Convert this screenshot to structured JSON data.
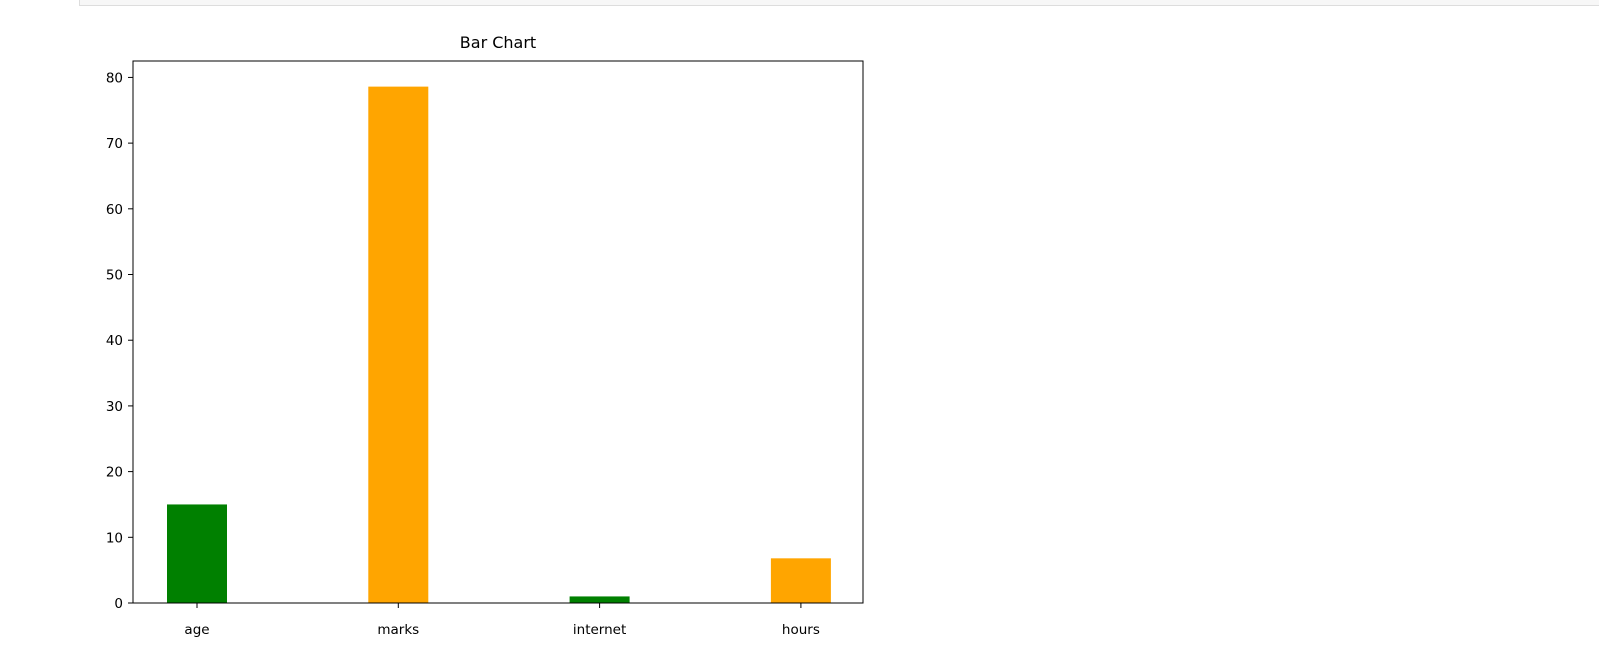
{
  "chart_data": {
    "type": "bar",
    "title": "Bar Chart",
    "xlabel": "",
    "ylabel": "",
    "categories": [
      "age",
      "marks",
      "internet",
      "hours"
    ],
    "values": [
      15,
      78.6,
      1,
      6.8
    ],
    "colors": [
      "#008000",
      "#ffa500",
      "#008000",
      "#ffa500"
    ],
    "yticks": [
      0,
      10,
      20,
      30,
      40,
      50,
      60,
      70,
      80
    ],
    "ylim": [
      0,
      82.5
    ],
    "grid": false
  }
}
